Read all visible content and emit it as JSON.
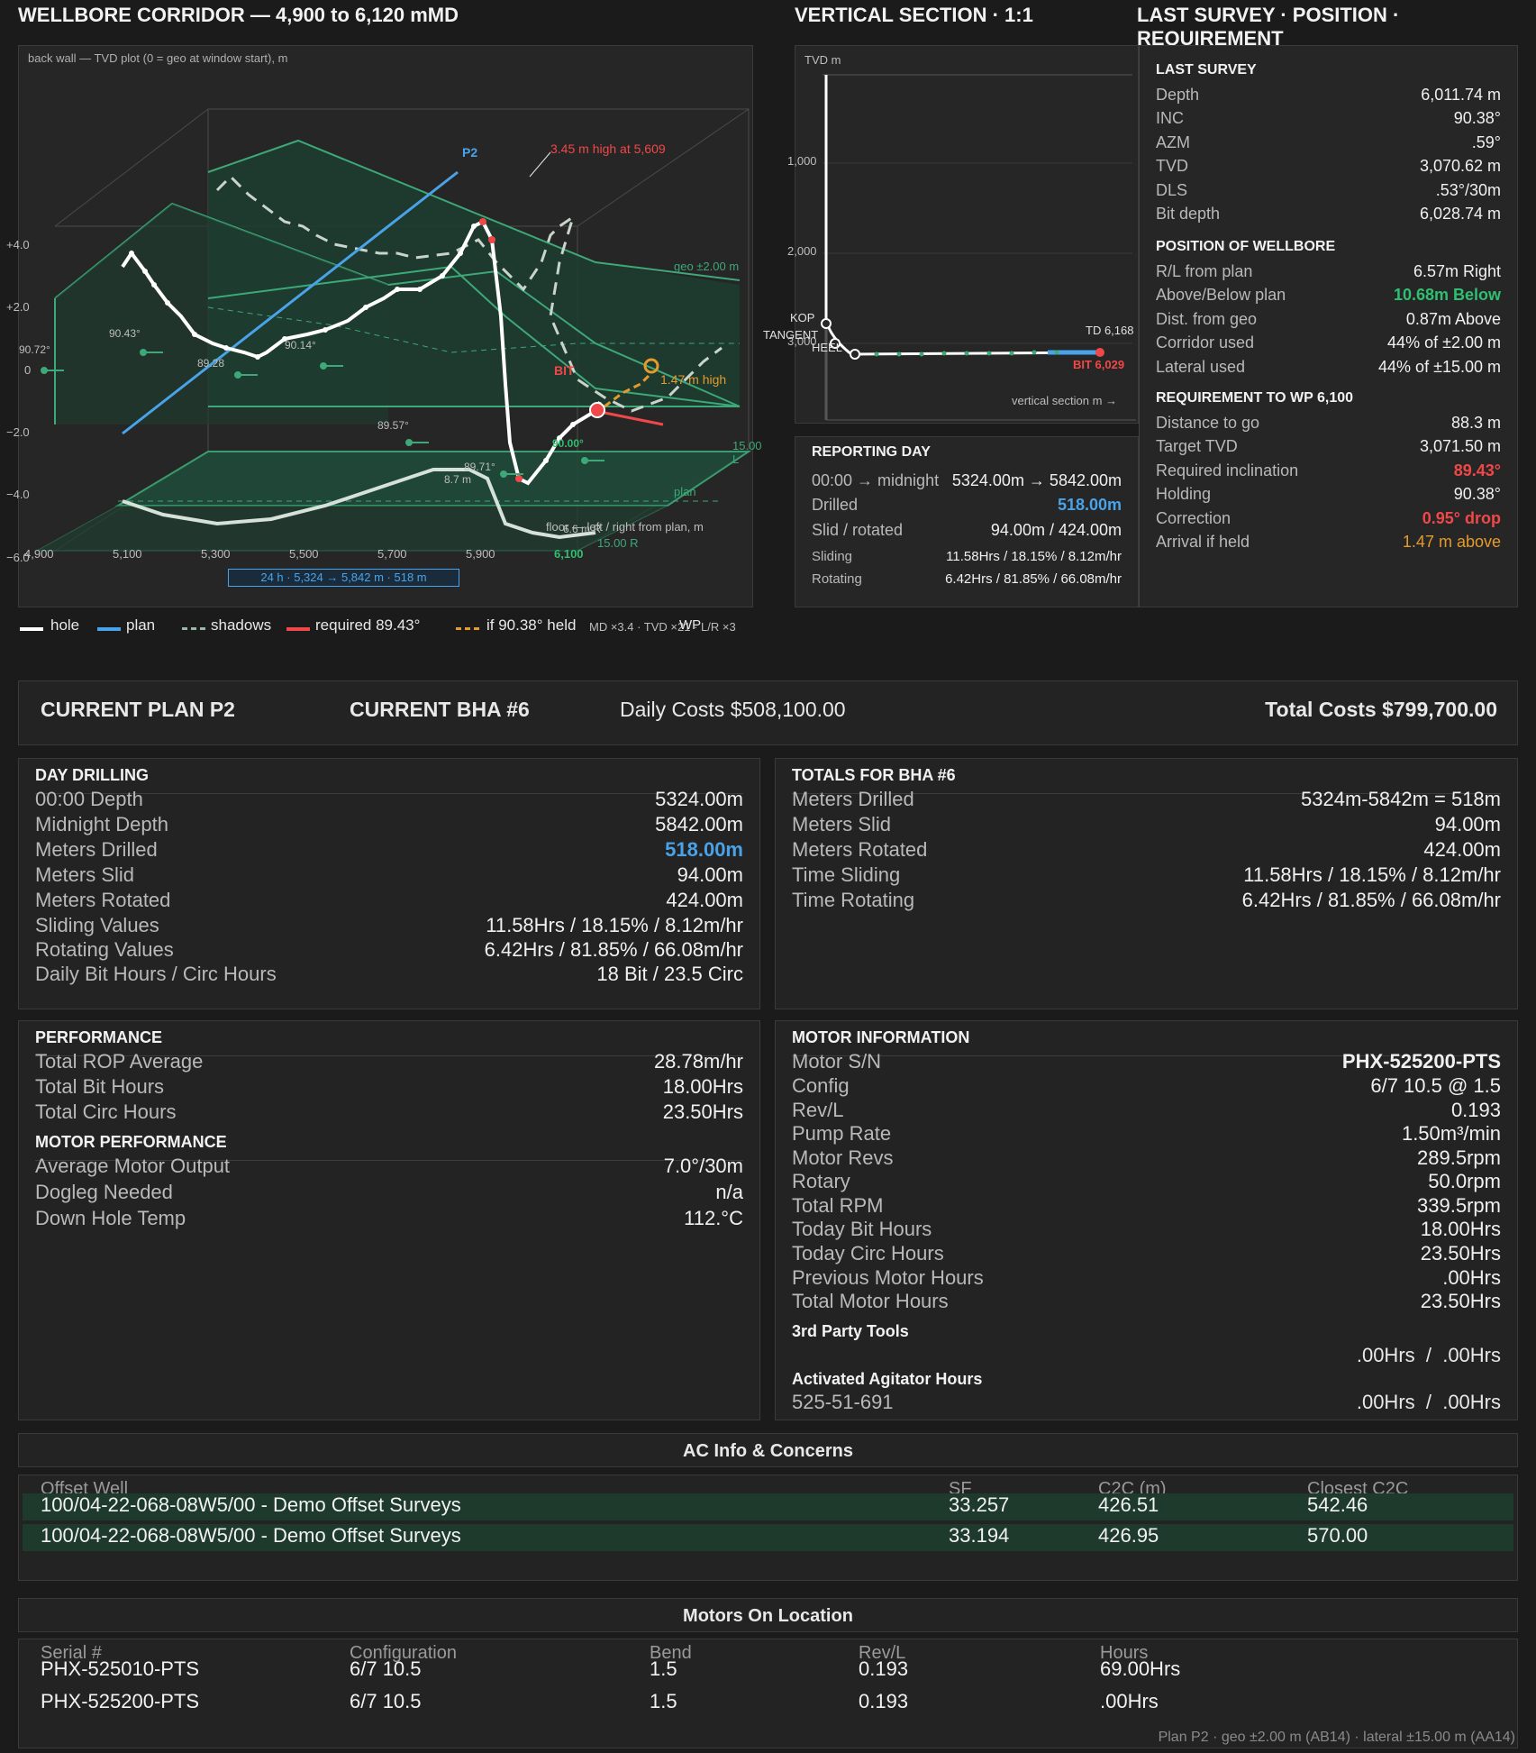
{
  "corridor": {
    "title": "WELLBORE CORRIDOR — 4,900 to 6,120 mMD",
    "back_wall_label": "back wall — TVD plot (0 = geo at window start), m",
    "y_ticks": [
      "+4.0",
      "+2.0",
      "0",
      "−2.0",
      "−4.0",
      "−6.0"
    ],
    "x_ticks": [
      "4,900",
      "5,100",
      "5,300",
      "5,500",
      "5,700",
      "5,900",
      "6,100"
    ],
    "window_label": "24 h · 5,324 → 5,842 m · 518 m",
    "p2_label": "P2",
    "high_label": "3.45 m high at 5,609",
    "geo_label": "geo ±2.00 m",
    "lateral_label": "15.00 L",
    "plan_label": "plan",
    "floor_label": "floor — left / right from plan, m",
    "r_label": "15.00 R",
    "bit_label": "BIT",
    "bit_high_label": "1.47 m high",
    "inc_labels": [
      "90.72°",
      "90.43°",
      "89.28",
      "90.14°",
      "89.57°",
      "89.71°",
      "90.00°"
    ],
    "dist_labels": [
      "8.7 m",
      "6.6 m R"
    ],
    "sub_legend": "MD ×3.4 · TVD ×21 · L/R ×3",
    "wp_label": "WP",
    "legend": [
      {
        "label": "hole",
        "color": "#ffffff"
      },
      {
        "label": "plan",
        "color": "#4aa3e8"
      },
      {
        "label": "shadows",
        "color": "#9ab8a6"
      },
      {
        "label": "required 89.43°",
        "color": "#f04848"
      },
      {
        "label": "if 90.38° held",
        "color": "#e59a2c"
      }
    ]
  },
  "vsection": {
    "title": "VERTICAL SECTION · 1:1",
    "tvd_label": "TVD m",
    "ticks": [
      "1,000",
      "2,000",
      "3,000"
    ],
    "kop": "KOP",
    "tangent": "TANGENT",
    "heel": "HEEL",
    "td": "TD 6,168",
    "bit": "BIT 6,029",
    "xlabel": "vertical section m →"
  },
  "reporting": {
    "title": "REPORTING DAY",
    "rows": [
      {
        "label": "00:00 → midnight",
        "value": "5324.00m → 5842.00m"
      },
      {
        "label": "Drilled",
        "value": "518.00m"
      },
      {
        "label": "Slid / rotated",
        "value": "94.00m / 424.00m"
      },
      {
        "label": "Sliding",
        "value": "11.58Hrs / 18.15% / 8.12m/hr"
      },
      {
        "label": "Rotating",
        "value": "6.42Hrs / 81.85% / 66.08m/hr"
      }
    ]
  },
  "survey": {
    "title": "LAST SURVEY · POSITION · REQUIREMENT",
    "last_title": "LAST SURVEY",
    "last": [
      {
        "label": "Depth",
        "value": "6,011.74 m"
      },
      {
        "label": "INC",
        "value": "90.38°"
      },
      {
        "label": "AZM",
        "value": ".59°"
      },
      {
        "label": "TVD",
        "value": "3,070.62 m"
      },
      {
        "label": "DLS",
        "value": ".53°/30m"
      },
      {
        "label": "Bit depth",
        "value": "6,028.74 m"
      }
    ],
    "pos_title": "POSITION OF WELLBORE",
    "position": [
      {
        "label": "R/L from plan",
        "value": "6.57m Right"
      },
      {
        "label": "Above/Below plan",
        "value": "10.68m Below"
      },
      {
        "label": "Dist. from geo",
        "value": "0.87m Above"
      },
      {
        "label": "Corridor used",
        "value": "44% of ±2.00 m"
      },
      {
        "label": "Lateral used",
        "value": "44% of ±15.00 m"
      }
    ],
    "req_title": "REQUIREMENT TO WP 6,100",
    "requirement": [
      {
        "label": "Distance to go",
        "value": "88.3 m"
      },
      {
        "label": "Target TVD",
        "value": "3,071.50 m"
      },
      {
        "label": "Required inclination",
        "value": "89.43°"
      },
      {
        "label": "Holding",
        "value": "90.38°"
      },
      {
        "label": "Correction",
        "value": "0.95° drop"
      },
      {
        "label": "Arrival if held",
        "value": "1.47 m above"
      }
    ]
  },
  "plan_bar": {
    "plan": "CURRENT PLAN P2",
    "bha": "CURRENT BHA #6",
    "daily": "Daily Costs $508,100.00",
    "total": "Total Costs $799,700.00"
  },
  "day_drilling": {
    "title": "DAY DRILLING",
    "rows": [
      {
        "label": "00:00 Depth",
        "value": "5324.00m"
      },
      {
        "label": "Midnight Depth",
        "value": "5842.00m"
      },
      {
        "label": "Meters Drilled",
        "value": "518.00m"
      },
      {
        "label": "Meters Slid",
        "value": "94.00m"
      },
      {
        "label": "Meters Rotated",
        "value": "424.00m"
      },
      {
        "label": "Sliding Values",
        "value": "11.58Hrs / 18.15% / 8.12m/hr"
      },
      {
        "label": "Rotating Values",
        "value": "6.42Hrs / 81.85% / 66.08m/hr"
      },
      {
        "label": "Daily Bit Hours / Circ Hours",
        "value": "18 Bit / 23.5 Circ"
      }
    ]
  },
  "totals_bha": {
    "title": "TOTALS FOR BHA #6",
    "rows": [
      {
        "label": "Meters Drilled",
        "value": "5324m-5842m = 518m"
      },
      {
        "label": "Meters Slid",
        "value": "94.00m"
      },
      {
        "label": "Meters Rotated",
        "value": "424.00m"
      },
      {
        "label": "Time Sliding",
        "value": "11.58Hrs / 18.15% / 8.12m/hr"
      },
      {
        "label": "Time Rotating",
        "value": "6.42Hrs / 81.85% / 66.08m/hr"
      }
    ]
  },
  "performance": {
    "title": "PERFORMANCE",
    "rows": [
      {
        "label": "Total ROP Average",
        "value": "28.78m/hr"
      },
      {
        "label": "Total Bit Hours",
        "value": "18.00Hrs"
      },
      {
        "label": "Total Circ Hours",
        "value": "23.50Hrs"
      }
    ],
    "motor_title": "MOTOR PERFORMANCE",
    "motor_rows": [
      {
        "label": "Average Motor Output",
        "value": "7.0°/30m"
      },
      {
        "label": "Dogleg Needed",
        "value": "n/a"
      },
      {
        "label": "Down Hole Temp",
        "value": "112.°C"
      }
    ]
  },
  "motor_info": {
    "title": "MOTOR INFORMATION",
    "rows": [
      {
        "label": "Motor S/N",
        "value": "PHX-525200-PTS"
      },
      {
        "label": "Config",
        "value": "6/7 10.5 @ 1.5"
      },
      {
        "label": "Rev/L",
        "value": "0.193"
      },
      {
        "label": "Pump Rate",
        "value": "1.50m³/min"
      },
      {
        "label": "Motor Revs",
        "value": "289.5rpm"
      },
      {
        "label": "Rotary",
        "value": "50.0rpm"
      },
      {
        "label": "Total RPM",
        "value": "339.5rpm"
      },
      {
        "label": "Today Bit Hours",
        "value": "18.00Hrs"
      },
      {
        "label": "Today Circ Hours",
        "value": "23.50Hrs"
      },
      {
        "label": "Previous Motor Hours",
        "value": ".00Hrs"
      },
      {
        "label": "Total Motor Hours",
        "value": "23.50Hrs"
      }
    ],
    "third_party": "3rd Party Tools",
    "third_party_value": ".00Hrs  /  .00Hrs",
    "agitator": "Activated Agitator Hours",
    "agitator_id": "525-51-691",
    "agitator_value": ".00Hrs  /  .00Hrs"
  },
  "ac_info": {
    "title": "AC Info & Concerns",
    "headers": [
      "Offset Well",
      "SF",
      "C2C (m)",
      "Closest C2C"
    ],
    "rows": [
      [
        "100/04-22-068-08W5/00 - Demo Offset Surveys",
        "33.257",
        "426.51",
        "542.46"
      ],
      [
        "100/04-22-068-08W5/00 - Demo Offset Surveys",
        "33.194",
        "426.95",
        "570.00"
      ]
    ]
  },
  "motors": {
    "title": "Motors On Location",
    "headers": [
      "Serial #",
      "Configuration",
      "Bend",
      "Rev/L",
      "Hours"
    ],
    "rows": [
      [
        "PHX-525010-PTS",
        "6/7 10.5",
        "1.5",
        "0.193",
        "69.00Hrs"
      ],
      [
        "PHX-525200-PTS",
        "6/7 10.5",
        "1.5",
        "0.193",
        ".00Hrs"
      ]
    ]
  },
  "footer": "Plan P2 · geo ±2.00 m (AB14) · lateral ±15.00 m (AA14)",
  "colors": {
    "accent_blue": "#4aa3e8",
    "accent_green": "#2fbf71",
    "accent_red": "#f04848",
    "accent_orange": "#e59a2c",
    "corridor_green": "#3da878"
  }
}
